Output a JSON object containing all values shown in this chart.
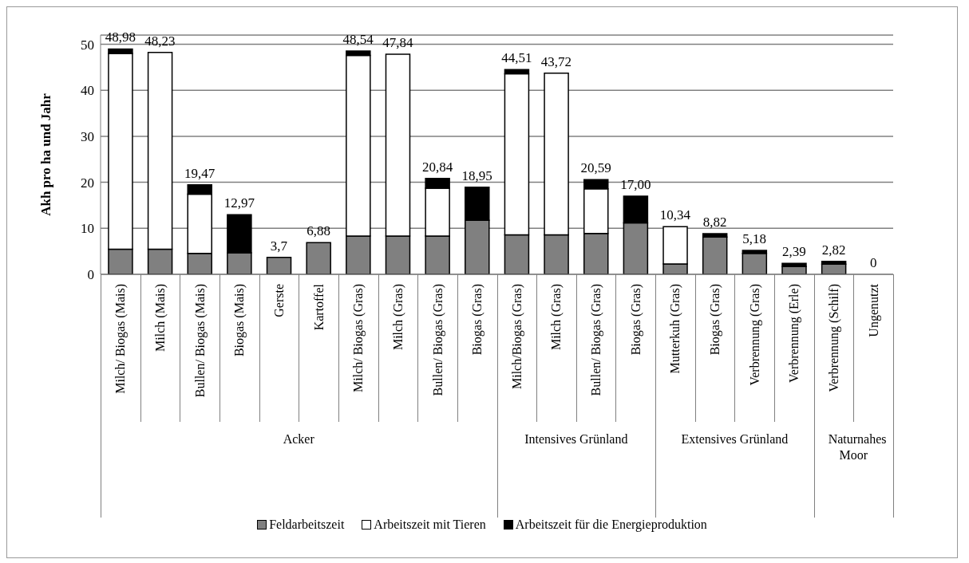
{
  "chart_data": {
    "type": "bar",
    "stacked": true,
    "ylabel": "Akh pro ha und Jahr",
    "categories": [
      "Milch/ Biogas (Mais)",
      "Milch (Mais)",
      "Bullen/ Biogas (Mais)",
      "Biogas (Mais)",
      "Gerste",
      "Kartoffel",
      "Milch/ Biogas (Gras)",
      "Milch (Gras)",
      "Bullen/ Biogas (Gras)",
      "Biogas (Gras)",
      "Milch/Biogas (Gras)",
      "Milch (Gras)",
      "Bullen/ Biogas (Gras)",
      "Biogas (Gras)",
      "Mutterkuh (Gras)",
      "Biogas (Gras)",
      "Verbrennung (Gras)",
      "Verbrennung (Erle)",
      "Verbrennung (Schilf)",
      "Ungenutzt"
    ],
    "series": [
      {
        "name": "Feldarbeitszeit",
        "color": "#808080",
        "values": [
          5.45,
          5.45,
          4.55,
          4.67,
          3.7,
          6.88,
          8.3,
          8.3,
          8.3,
          11.76,
          8.6,
          8.6,
          8.9,
          11.2,
          2.24,
          8.1,
          4.55,
          1.7,
          2.2,
          0
        ]
      },
      {
        "name": "Arbeitszeit mit Tieren",
        "color": "#ffffff",
        "values": [
          42.55,
          42.78,
          12.85,
          0,
          0,
          0,
          39.3,
          39.54,
          10.4,
          0,
          35.0,
          35.12,
          9.7,
          0,
          8.1,
          0,
          0,
          0,
          0,
          0
        ]
      },
      {
        "name": "Arbeitszeit für die Energieproduktion",
        "color": "#000000",
        "values": [
          0.98,
          0,
          2.07,
          8.3,
          0,
          0,
          0.94,
          0,
          2.14,
          7.19,
          0.91,
          0,
          1.99,
          5.8,
          0,
          0.72,
          0.63,
          0.69,
          0.62,
          0
        ]
      }
    ],
    "totals": [
      "48,98",
      "48,23",
      "19,47",
      "12,97",
      "3,7",
      "6,88",
      "48,54",
      "47,84",
      "20,84",
      "18,95",
      "44,51",
      "43,72",
      "20,59",
      "17,00",
      "10,34",
      "8,82",
      "5,18",
      "2,39",
      "2,82",
      "0"
    ],
    "annotations": [
      "Acker",
      "Intensives Grünland",
      "Extensives Grünland",
      "Naturnahes Moor"
    ],
    "ylim": [
      0,
      52
    ],
    "yticks": [
      0,
      10,
      20,
      30,
      40,
      50
    ],
    "grid": "y",
    "legend": "bottom"
  }
}
